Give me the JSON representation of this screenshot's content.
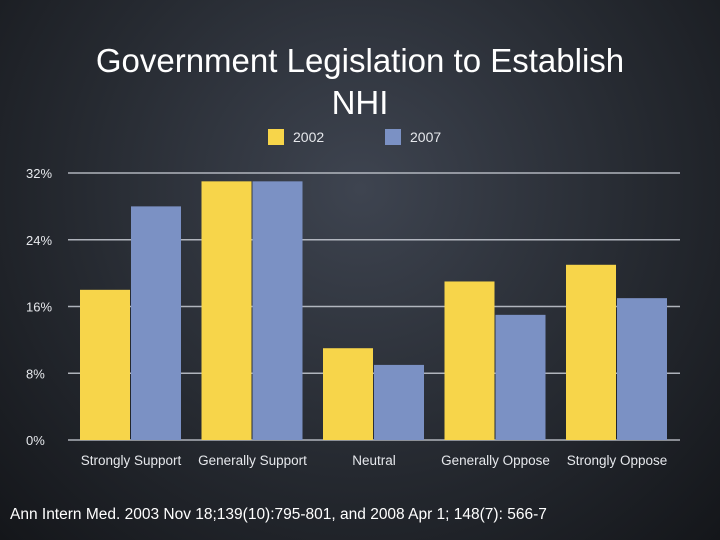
{
  "title_line1": "Government Legislation to Establish",
  "title_line2": "NHI",
  "citation": "Ann Intern Med. 2003 Nov 18;139(10):795-801, and 2008 Apr 1; 148(7): 566-7",
  "colors": {
    "series_2002": "#f7d54a",
    "series_2007": "#7b91c4",
    "gridline": "#c8ccd4",
    "axis_text": "#e6e8ec"
  },
  "chart_data": {
    "type": "bar",
    "title": "Government Legislation to Establish NHI",
    "xlabel": "",
    "ylabel": "",
    "categories": [
      "Strongly Support",
      "Generally Support",
      "Neutral",
      "Generally Oppose",
      "Strongly Oppose"
    ],
    "series": [
      {
        "name": "2002",
        "values": [
          18,
          31,
          11,
          19,
          21
        ]
      },
      {
        "name": "2007",
        "values": [
          28,
          31,
          9,
          15,
          17
        ]
      }
    ],
    "ylim": [
      0,
      32
    ],
    "yticks": [
      0,
      8,
      16,
      24,
      32
    ],
    "ytick_labels": [
      "0%",
      "8%",
      "16%",
      "24%",
      "32%"
    ],
    "grid": true,
    "legend": "top-center"
  }
}
